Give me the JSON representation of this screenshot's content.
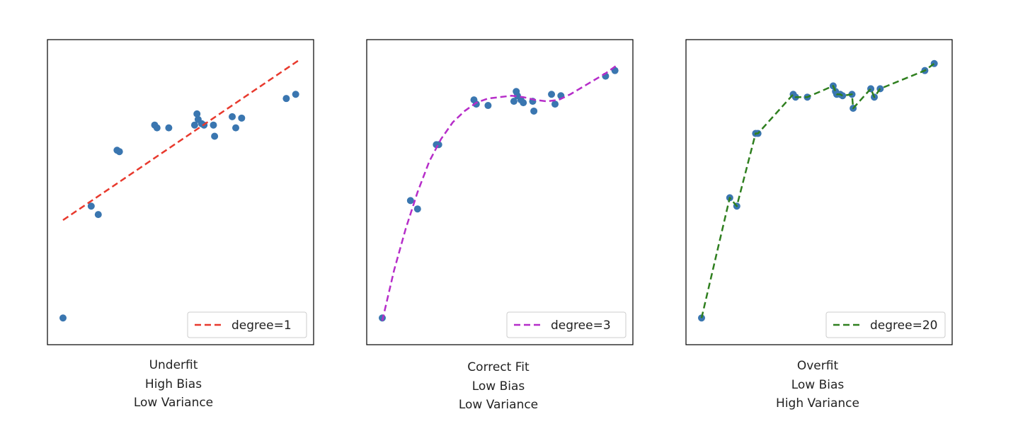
{
  "colors": {
    "points": "#3a76b0",
    "underfit_line": "#e8392d",
    "correct_line": "#b62dc9",
    "overfit_line": "#2f7f1f"
  },
  "chart_data": [
    {
      "type": "scatter",
      "title": "",
      "xlabel": "",
      "ylabel": "",
      "xlim": [
        0,
        1
      ],
      "ylim": [
        0,
        1
      ],
      "grid": false,
      "ticks": false,
      "legend_position": "bottom-right",
      "caption": [
        "Underfit",
        "High Bias",
        "Low Variance"
      ],
      "points": [
        [
          0.0,
          0.05
        ],
        [
          0.12,
          0.45
        ],
        [
          0.15,
          0.42
        ],
        [
          0.23,
          0.65
        ],
        [
          0.24,
          0.645
        ],
        [
          0.39,
          0.74
        ],
        [
          0.4,
          0.73
        ],
        [
          0.45,
          0.73
        ],
        [
          0.56,
          0.74
        ],
        [
          0.57,
          0.78
        ],
        [
          0.575,
          0.76
        ],
        [
          0.59,
          0.745
        ],
        [
          0.6,
          0.74
        ],
        [
          0.64,
          0.74
        ],
        [
          0.645,
          0.7
        ],
        [
          0.72,
          0.77
        ],
        [
          0.735,
          0.73
        ],
        [
          0.76,
          0.765
        ],
        [
          0.95,
          0.835
        ],
        [
          0.99,
          0.85
        ]
      ],
      "series": [
        {
          "name": "degree=1",
          "style": "dashed",
          "x": [
            0.0,
            1.0
          ],
          "y": [
            0.4,
            0.97
          ]
        }
      ]
    },
    {
      "type": "scatter",
      "title": "",
      "xlabel": "",
      "ylabel": "",
      "xlim": [
        0,
        1
      ],
      "ylim": [
        0,
        1
      ],
      "grid": false,
      "ticks": false,
      "legend_position": "bottom-right",
      "caption": [
        "Correct Fit",
        "Low Bias",
        "Low Variance"
      ],
      "points": [
        [
          0.0,
          0.05
        ],
        [
          0.12,
          0.47
        ],
        [
          0.15,
          0.44
        ],
        [
          0.23,
          0.67
        ],
        [
          0.24,
          0.67
        ],
        [
          0.39,
          0.83
        ],
        [
          0.4,
          0.815
        ],
        [
          0.45,
          0.81
        ],
        [
          0.56,
          0.825
        ],
        [
          0.57,
          0.86
        ],
        [
          0.575,
          0.845
        ],
        [
          0.59,
          0.83
        ],
        [
          0.6,
          0.82
        ],
        [
          0.64,
          0.825
        ],
        [
          0.645,
          0.79
        ],
        [
          0.72,
          0.85
        ],
        [
          0.735,
          0.815
        ],
        [
          0.76,
          0.845
        ],
        [
          0.95,
          0.915
        ],
        [
          0.99,
          0.935
        ]
      ],
      "series": [
        {
          "name": "degree=3",
          "style": "dashed",
          "x": [
            0.0,
            0.05,
            0.1,
            0.15,
            0.2,
            0.25,
            0.3,
            0.35,
            0.4,
            0.45,
            0.5,
            0.55,
            0.6,
            0.65,
            0.7,
            0.75,
            0.8,
            0.85,
            0.9,
            0.95,
            1.0
          ],
          "y": [
            0.04,
            0.22,
            0.37,
            0.5,
            0.61,
            0.69,
            0.75,
            0.79,
            0.82,
            0.835,
            0.84,
            0.845,
            0.84,
            0.83,
            0.825,
            0.83,
            0.85,
            0.875,
            0.9,
            0.925,
            0.955
          ]
        }
      ]
    },
    {
      "type": "scatter",
      "title": "",
      "xlabel": "",
      "ylabel": "",
      "xlim": [
        0,
        1
      ],
      "ylim": [
        0,
        1
      ],
      "grid": false,
      "ticks": false,
      "legend_position": "bottom-right",
      "caption": [
        "Overfit",
        "Low Bias",
        "High Variance"
      ],
      "points": [
        [
          0.0,
          0.05
        ],
        [
          0.12,
          0.48
        ],
        [
          0.15,
          0.45
        ],
        [
          0.23,
          0.71
        ],
        [
          0.24,
          0.71
        ],
        [
          0.39,
          0.85
        ],
        [
          0.4,
          0.84
        ],
        [
          0.45,
          0.84
        ],
        [
          0.56,
          0.88
        ],
        [
          0.57,
          0.86
        ],
        [
          0.575,
          0.85
        ],
        [
          0.59,
          0.85
        ],
        [
          0.6,
          0.845
        ],
        [
          0.64,
          0.85
        ],
        [
          0.645,
          0.8
        ],
        [
          0.72,
          0.87
        ],
        [
          0.735,
          0.84
        ],
        [
          0.76,
          0.87
        ],
        [
          0.95,
          0.935
        ],
        [
          0.99,
          0.96
        ]
      ],
      "series": [
        {
          "name": "degree=20",
          "style": "dashed",
          "x": [
            0.0,
            0.12,
            0.15,
            0.23,
            0.24,
            0.39,
            0.4,
            0.45,
            0.56,
            0.57,
            0.575,
            0.59,
            0.6,
            0.64,
            0.645,
            0.72,
            0.735,
            0.76,
            0.95,
            0.99
          ],
          "y": [
            0.05,
            0.48,
            0.45,
            0.71,
            0.71,
            0.85,
            0.84,
            0.84,
            0.88,
            0.86,
            0.85,
            0.85,
            0.845,
            0.85,
            0.8,
            0.87,
            0.84,
            0.87,
            0.935,
            0.96
          ]
        }
      ]
    }
  ]
}
